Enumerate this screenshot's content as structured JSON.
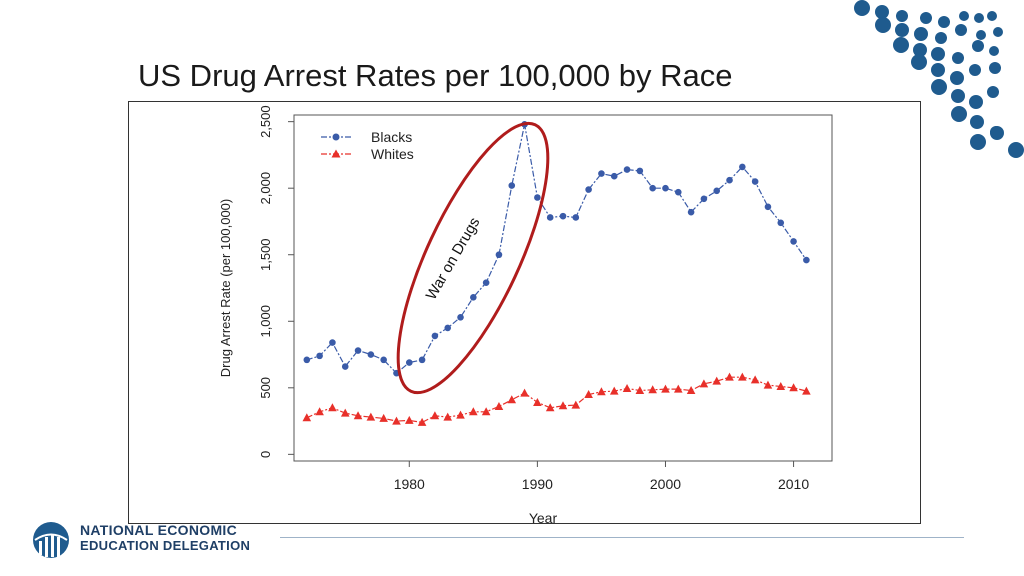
{
  "slide": {
    "title": "US Drug Arrest Rates per 100,000 by Race",
    "logo_line1": "NATIONAL ECONOMIC",
    "logo_line2": "EDUCATION DELEGATION"
  },
  "colors": {
    "blacks": "#3a5ba8",
    "whites": "#e8302a",
    "ellipse": "#b01c1c",
    "dots": "#1f5b8e"
  },
  "annotation": {
    "text": "War on Drugs"
  },
  "chart_data": {
    "type": "line",
    "title": "",
    "xlabel": "Year",
    "ylabel": "Drug Arrest Rate (per 100,000)",
    "xlim": [
      1971,
      2013
    ],
    "ylim": [
      -50,
      2550
    ],
    "x_ticks": [
      1980,
      1990,
      2000,
      2010
    ],
    "y_ticks": [
      0,
      500,
      1000,
      1500,
      2000,
      2500
    ],
    "y_tick_labels": [
      "0",
      "500",
      "1,000",
      "1,500",
      "2,000",
      "2,500"
    ],
    "legend_position": "top-left",
    "x": [
      1972,
      1973,
      1974,
      1975,
      1976,
      1977,
      1978,
      1979,
      1980,
      1981,
      1982,
      1983,
      1984,
      1985,
      1986,
      1987,
      1988,
      1989,
      1990,
      1991,
      1992,
      1993,
      1994,
      1995,
      1996,
      1997,
      1998,
      1999,
      2000,
      2001,
      2002,
      2003,
      2004,
      2005,
      2006,
      2007,
      2008,
      2009,
      2010,
      2011
    ],
    "series": [
      {
        "name": "Blacks",
        "marker": "circle",
        "values": [
          710,
          740,
          840,
          660,
          780,
          750,
          710,
          610,
          690,
          710,
          890,
          950,
          1030,
          1180,
          1290,
          1500,
          2020,
          2480,
          1930,
          1780,
          1790,
          1780,
          1990,
          2110,
          2090,
          2140,
          2130,
          2000,
          2000,
          1970,
          1820,
          1920,
          1980,
          2060,
          2160,
          2050,
          1860,
          1740,
          1600,
          1460
        ]
      },
      {
        "name": "Whites",
        "marker": "triangle",
        "values": [
          275,
          320,
          350,
          310,
          290,
          280,
          270,
          250,
          255,
          240,
          290,
          280,
          295,
          320,
          320,
          360,
          410,
          460,
          390,
          350,
          365,
          370,
          450,
          470,
          475,
          495,
          480,
          485,
          490,
          490,
          480,
          530,
          550,
          580,
          580,
          560,
          520,
          510,
          500,
          475
        ]
      }
    ]
  }
}
